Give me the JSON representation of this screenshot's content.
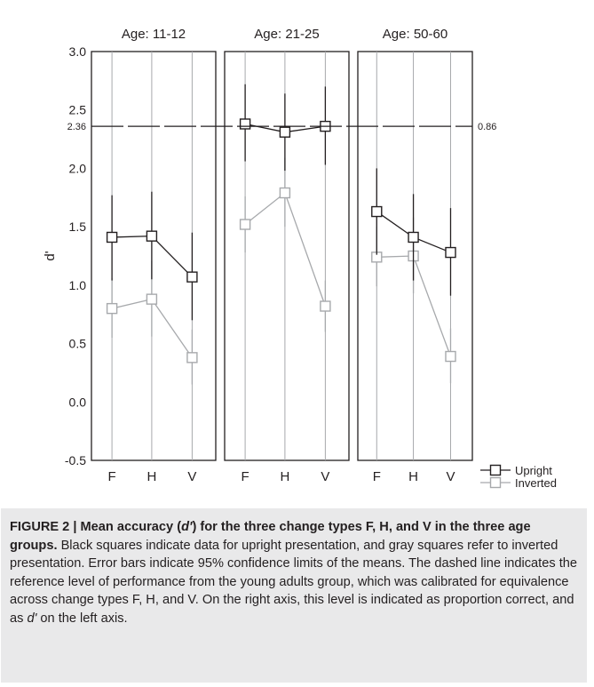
{
  "chart_data": {
    "type": "line",
    "panels": [
      {
        "title": "Age: 11-12",
        "categories": [
          "F",
          "H",
          "V"
        ],
        "series": [
          {
            "name": "Upright",
            "color": "#231f20",
            "values": [
              1.41,
              1.42,
              1.07
            ],
            "ci_low": [
              1.04,
              1.05,
              0.7
            ],
            "ci_high": [
              1.77,
              1.8,
              1.45
            ]
          },
          {
            "name": "Inverted",
            "color": "#a7a9ac",
            "values": [
              0.8,
              0.88,
              0.38
            ],
            "ci_low": [
              0.55,
              0.56,
              0.15
            ],
            "ci_high": [
              1.06,
              1.21,
              0.62
            ]
          }
        ]
      },
      {
        "title": "Age: 21-25",
        "categories": [
          "F",
          "H",
          "V"
        ],
        "series": [
          {
            "name": "Upright",
            "color": "#231f20",
            "values": [
              2.38,
              2.31,
              2.36
            ],
            "ci_low": [
              2.06,
              1.98,
              2.03
            ],
            "ci_high": [
              2.72,
              2.64,
              2.7
            ]
          },
          {
            "name": "Inverted",
            "color": "#a7a9ac",
            "values": [
              1.52,
              1.79,
              0.82
            ],
            "ci_low": [
              1.28,
              1.5,
              0.6
            ],
            "ci_high": [
              1.76,
              2.09,
              1.04
            ]
          }
        ]
      },
      {
        "title": "Age: 50-60",
        "categories": [
          "F",
          "H",
          "V"
        ],
        "series": [
          {
            "name": "Upright",
            "color": "#231f20",
            "values": [
              1.63,
              1.41,
              1.28
            ],
            "ci_low": [
              1.26,
              1.04,
              0.91
            ],
            "ci_high": [
              2.0,
              1.78,
              1.66
            ]
          },
          {
            "name": "Inverted",
            "color": "#a7a9ac",
            "values": [
              1.24,
              1.25,
              0.39
            ],
            "ci_low": [
              0.99,
              0.93,
              0.16
            ],
            "ci_high": [
              1.5,
              1.58,
              0.63
            ]
          }
        ]
      }
    ],
    "ylabel": "d'",
    "xlabel": "",
    "ylim": [
      -0.5,
      3.0
    ],
    "y_ticks": [
      "-0.5",
      "0.0",
      "0.5",
      "1.0",
      "1.5",
      "2.0",
      "2.5",
      "3.0"
    ],
    "reference_line": {
      "value": 2.36,
      "left_label": "2.36",
      "right_label": "0.86",
      "style": "dashed"
    },
    "legend": {
      "placement": "bottom-right",
      "items": [
        "Upright",
        "Inverted"
      ]
    },
    "grid": "vertical lines at categories"
  },
  "caption": {
    "title_bold_1": "FIGURE 2 | Mean accuracy (",
    "title_bold_italic": "d'",
    "title_bold_2": ") for the three change types F, H, and V in the three age groups.",
    "text_1": " Black squares indicate data for upright presentation, and gray squares refer to inverted presentation. Error bars indicate 95% confidence limits of the means. The dashed line indicates the reference level of performance from the young adults group, which was calibrated for equivalence across change types F, H, and V. On the right axis, this level is indicated as proportion correct, and as ",
    "text_italic": "d'",
    "text_2": " on the left axis."
  }
}
